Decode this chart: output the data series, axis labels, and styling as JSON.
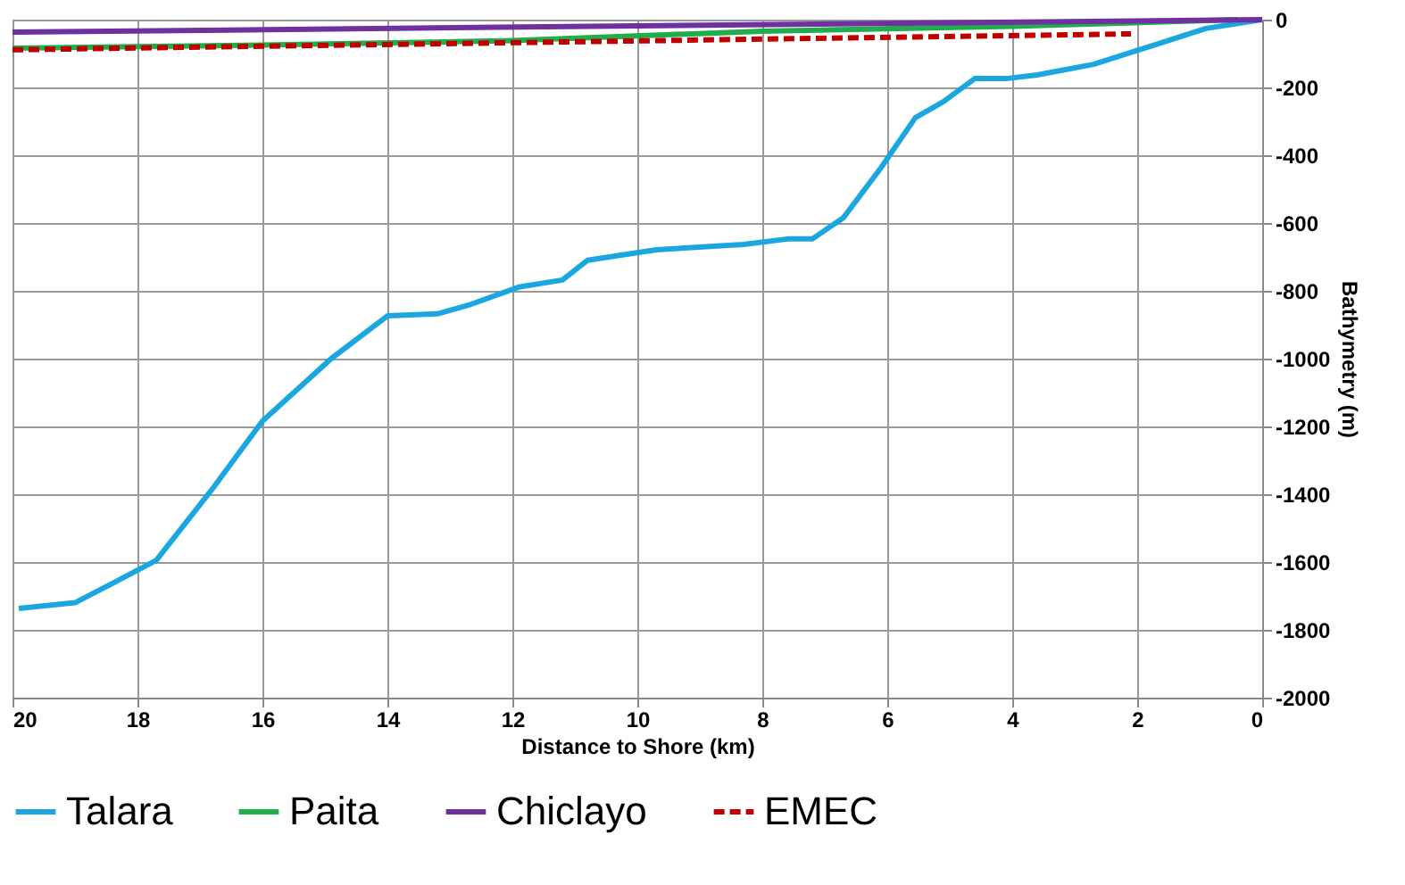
{
  "chart_data": {
    "type": "line",
    "xlabel": "Distance to Shore (km)",
    "ylabel": "Bathymetry (m)",
    "xlim": [
      20,
      0
    ],
    "xticks": [
      20,
      18,
      16,
      14,
      12,
      10,
      8,
      6,
      4,
      2,
      0
    ],
    "ylim": [
      -2000,
      0
    ],
    "yticks": [
      -2000,
      -1800,
      -1600,
      -1400,
      -1200,
      -1000,
      -800,
      -600,
      -400,
      -200,
      0
    ],
    "grid": true,
    "legend": "bottom",
    "series": [
      {
        "name": "Talara",
        "color": "#1aa7e0",
        "line_style": "solid",
        "x": [
          19.9,
          19,
          18.4,
          17.7,
          16.8,
          16,
          14.9,
          14,
          13.2,
          12.7,
          11.9,
          11.2,
          10.8,
          9.7,
          8.3,
          7.6,
          7.2,
          6.7,
          6.1,
          5.55,
          5.1,
          4.6,
          4.1,
          3.6,
          2.7,
          1.8,
          0.9,
          0
        ],
        "values": [
          -1737,
          -1720,
          -1663,
          -1595,
          -1384,
          -1184,
          -1000,
          -874,
          -868,
          -842,
          -789,
          -768,
          -710,
          -679,
          -663,
          -647,
          -647,
          -584,
          -437,
          -289,
          -242,
          -174,
          -174,
          -163,
          -132,
          -79,
          -26,
          0
        ]
      },
      {
        "name": "Paita",
        "color": "#1fae4b",
        "line_style": "solid",
        "x": [
          20,
          16,
          12,
          8,
          4,
          0.4
        ],
        "values": [
          -84,
          -75,
          -62,
          -34,
          -20,
          0
        ]
      },
      {
        "name": "Chiclayo",
        "color": "#7030a0",
        "line_style": "solid",
        "x": [
          20,
          0
        ],
        "values": [
          -37,
          0
        ]
      },
      {
        "name": "EMEC",
        "color": "#c00000",
        "line_style": "dashed",
        "x": [
          20,
          2.1
        ],
        "values": [
          -89,
          -42
        ]
      }
    ]
  }
}
